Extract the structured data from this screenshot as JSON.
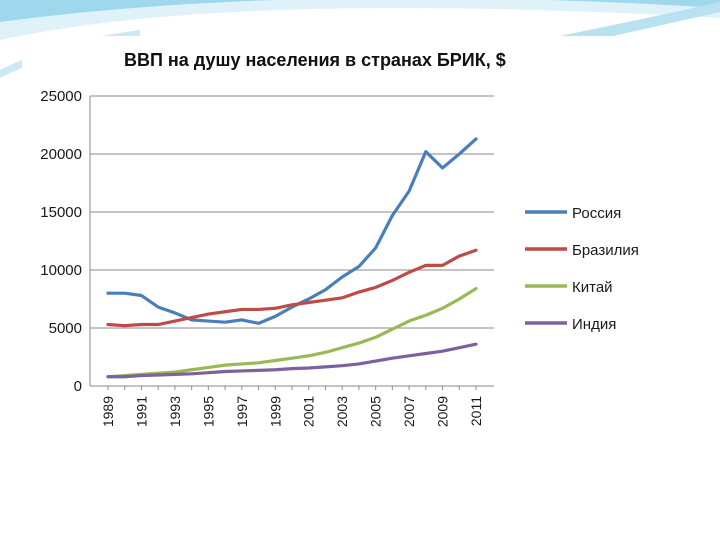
{
  "colors": {
    "accent_swoosh": "#9fd8ec",
    "accent_swoosh_light": "#dff2f9",
    "grid": "#8a8a8a"
  },
  "chart_data": {
    "type": "line",
    "title": "ВВП на душу населения в странах БРИК, $",
    "xlabel": "",
    "ylabel": "",
    "x": [
      1989,
      1990,
      1991,
      1992,
      1993,
      1994,
      1995,
      1996,
      1997,
      1998,
      1999,
      2000,
      2001,
      2002,
      2003,
      2004,
      2005,
      2006,
      2007,
      2008,
      2009,
      2010,
      2011
    ],
    "x_tick_labels": [
      "1989",
      "1991",
      "1993",
      "1995",
      "1997",
      "1999",
      "2001",
      "2003",
      "2005",
      "2007",
      "2009",
      "2011"
    ],
    "ylim": [
      0,
      25000
    ],
    "y_ticks": [
      0,
      5000,
      10000,
      15000,
      20000,
      25000
    ],
    "y_tick_labels": [
      "0",
      "5000",
      "10000",
      "15000",
      "20000",
      "25000"
    ],
    "grid": true,
    "legend_position": "right",
    "series": [
      {
        "name": "Россия",
        "color": "#4a7ebb",
        "values": [
          8000,
          8000,
          7800,
          6800,
          6300,
          5700,
          5600,
          5500,
          5700,
          5400,
          6000,
          6800,
          7500,
          8300,
          9400,
          10300,
          11900,
          14700,
          16800,
          20200,
          18800,
          20000,
          21300
        ]
      },
      {
        "name": "Бразилия",
        "color": "#be4b48",
        "values": [
          5300,
          5200,
          5300,
          5300,
          5600,
          5900,
          6200,
          6400,
          6600,
          6600,
          6700,
          7000,
          7200,
          7400,
          7600,
          8100,
          8500,
          9100,
          9800,
          10400,
          10400,
          11200,
          11700
        ]
      },
      {
        "name": "Китай",
        "color": "#98b954",
        "values": [
          800,
          900,
          1000,
          1100,
          1200,
          1400,
          1600,
          1800,
          1900,
          2000,
          2200,
          2400,
          2600,
          2900,
          3300,
          3700,
          4200,
          4900,
          5600,
          6100,
          6700,
          7500,
          8400
        ]
      },
      {
        "name": "Индия",
        "color": "#7d60a0",
        "values": [
          800,
          800,
          900,
          950,
          1000,
          1050,
          1150,
          1250,
          1300,
          1350,
          1400,
          1500,
          1550,
          1650,
          1750,
          1900,
          2150,
          2400,
          2600,
          2800,
          3000,
          3300,
          3600
        ]
      }
    ]
  }
}
